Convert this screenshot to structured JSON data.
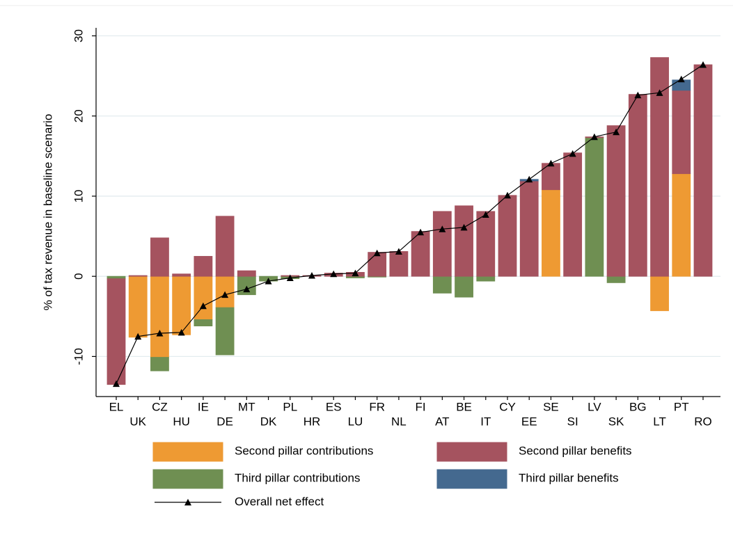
{
  "chart_data": {
    "type": "bar",
    "stacked": true,
    "y_label": "% of tax revenue in baseline scenario",
    "categories": [
      "EL",
      "UK",
      "CZ",
      "HU",
      "IE",
      "DE",
      "MT",
      "DK",
      "PL",
      "HR",
      "ES",
      "LU",
      "FR",
      "NL",
      "FI",
      "AT",
      "BE",
      "IT",
      "CY",
      "EE",
      "SE",
      "SI",
      "LV",
      "SK",
      "BG",
      "LT",
      "PT",
      "RO"
    ],
    "series": [
      {
        "name": "Second pillar contributions",
        "color": "#ee9a33",
        "values": [
          0,
          -7.6,
          -10.1,
          -7.3,
          -5.4,
          -3.9,
          0,
          0,
          0,
          0,
          0,
          0,
          0,
          0,
          0,
          0,
          0,
          0,
          0,
          0,
          10.8,
          0,
          0,
          0,
          0,
          -4.3,
          12.8,
          0
        ]
      },
      {
        "name": "Third pillar contributions",
        "color": "#6f8f52",
        "values": [
          -0.3,
          0,
          -1.7,
          0,
          -0.8,
          -5.9,
          -2.3,
          -0.6,
          -0.3,
          0,
          0,
          -0.2,
          -0.1,
          0,
          0,
          -2.1,
          -2.6,
          -0.6,
          0,
          0,
          0,
          0,
          17.3,
          -0.8,
          0,
          0,
          0,
          0
        ]
      },
      {
        "name": "Second pillar benefits",
        "color": "#a5535f",
        "values": [
          -13.2,
          0.1,
          4.8,
          0.3,
          2.5,
          7.5,
          0.7,
          0,
          0.1,
          0.1,
          0.4,
          0.5,
          3.0,
          3.1,
          5.6,
          8.1,
          8.8,
          8.1,
          10.1,
          11.9,
          3.3,
          15.4,
          0.1,
          18.8,
          22.7,
          27.3,
          10.4,
          26.4
        ]
      },
      {
        "name": "Third pillar benefits",
        "color": "#44698f",
        "values": [
          0,
          0,
          0,
          0,
          0,
          0,
          0,
          0,
          0,
          0,
          0,
          0,
          0,
          0,
          0,
          0,
          0,
          0,
          0,
          0.2,
          0,
          0,
          0,
          0,
          0,
          0,
          1.3,
          0
        ]
      }
    ],
    "line": {
      "name": "Overall net effect",
      "color": "#000000",
      "values": [
        -13.4,
        -7.5,
        -7.1,
        -7.0,
        -3.7,
        -2.3,
        -1.6,
        -0.6,
        -0.2,
        0.1,
        0.3,
        0.4,
        2.9,
        3.1,
        5.5,
        5.9,
        6.1,
        7.7,
        10.1,
        12.1,
        14.1,
        15.3,
        17.4,
        18.0,
        22.6,
        22.9,
        24.6,
        26.4
      ]
    },
    "ylim": [
      -15,
      31
    ],
    "yticks": [
      -10,
      0,
      10,
      20,
      30
    ],
    "grid": true
  }
}
